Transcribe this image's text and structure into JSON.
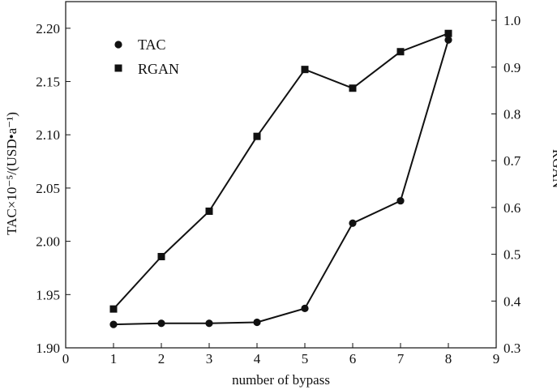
{
  "chart_data": {
    "type": "line",
    "xlabel": "number of bypass",
    "ylabel_left": "TAC×10⁻⁵/(USD•a⁻¹)",
    "ylabel_right": "RGAN",
    "x_ticks": [
      "0",
      "1",
      "2",
      "3",
      "4",
      "5",
      "6",
      "7",
      "8",
      "9"
    ],
    "y_left_ticks": [
      "1.90",
      "1.95",
      "2.00",
      "2.05",
      "2.10",
      "2.15",
      "2.20"
    ],
    "y_right_ticks": [
      "0.3",
      "0.4",
      "0.5",
      "0.6",
      "0.7",
      "0.8",
      "0.9",
      "1.0"
    ],
    "xlim": [
      0,
      9
    ],
    "ylim_left": [
      1.9,
      2.225
    ],
    "ylim_right": [
      0.3,
      1.04
    ],
    "grid": false,
    "legend_position": "top-left",
    "series": [
      {
        "name": "TAC",
        "axis": "left",
        "marker": "circle",
        "x": [
          1,
          2,
          3,
          4,
          5,
          6,
          7,
          8
        ],
        "y": [
          1.922,
          1.923,
          1.923,
          1.924,
          1.937,
          2.017,
          2.038,
          2.189
        ]
      },
      {
        "name": "RGAN",
        "axis": "right",
        "marker": "square",
        "x": [
          1,
          2,
          3,
          4,
          5,
          6,
          7,
          8
        ],
        "y": [
          0.383,
          0.495,
          0.592,
          0.752,
          0.895,
          0.855,
          0.933,
          0.972
        ]
      }
    ]
  }
}
